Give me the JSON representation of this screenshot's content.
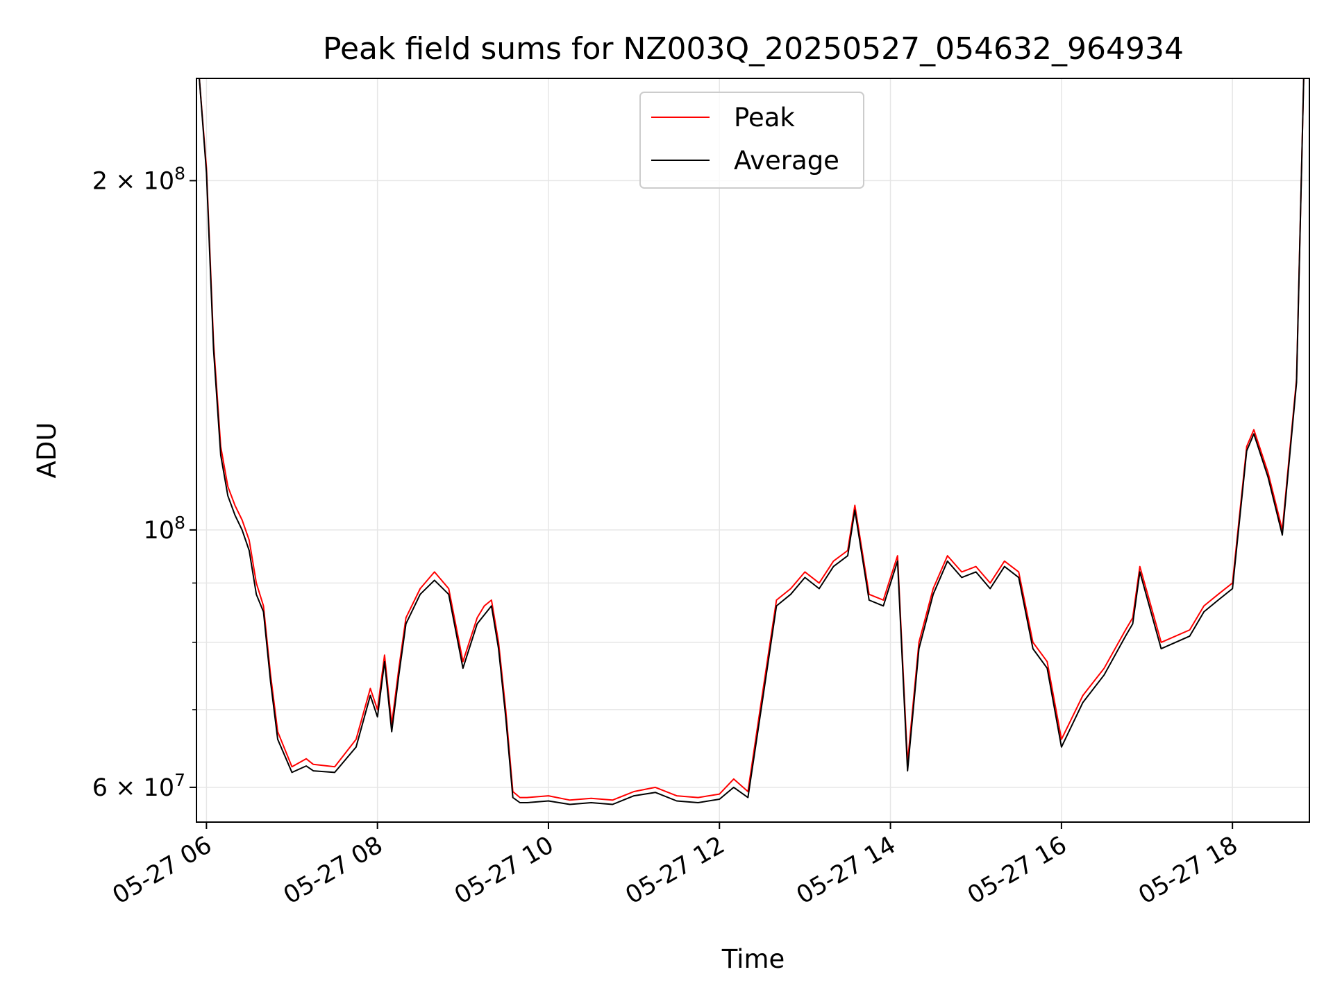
{
  "chart_data": {
    "type": "line",
    "title": "Peak field sums for NZ003Q_20250527_054632_964934",
    "xlabel": "Time",
    "ylabel": "ADU",
    "y_scale": "log",
    "grid": true,
    "legend_position": "top-center",
    "x_ticks": [
      "05-27 06",
      "05-27 08",
      "05-27 10",
      "05-27 12",
      "05-27 14",
      "05-27 16",
      "05-27 18"
    ],
    "y_ticks": [
      {
        "value": 200000000,
        "mantissa": "2",
        "exponent": "8"
      },
      {
        "value": 100000000,
        "mantissa": "",
        "exponent": "8"
      },
      {
        "value": 60000000,
        "mantissa": "6",
        "exponent": "7"
      }
    ],
    "xlim": [
      "2025-05-27 05:53",
      "2025-05-27 18:54"
    ],
    "ylim": [
      56000000,
      245000000
    ],
    "series_colors": {
      "Peak": "#ff0000",
      "Average": "#000000"
    },
    "series": [
      {
        "name": "Peak",
        "x": [
          "2025-05-27 05:55",
          "2025-05-27 06:00",
          "2025-05-27 06:05",
          "2025-05-27 06:10",
          "2025-05-27 06:15",
          "2025-05-27 06:20",
          "2025-05-27 06:25",
          "2025-05-27 06:30",
          "2025-05-27 06:35",
          "2025-05-27 06:40",
          "2025-05-27 06:45",
          "2025-05-27 06:50",
          "2025-05-27 07:00",
          "2025-05-27 07:10",
          "2025-05-27 07:15",
          "2025-05-27 07:30",
          "2025-05-27 07:45",
          "2025-05-27 07:55",
          "2025-05-27 08:00",
          "2025-05-27 08:05",
          "2025-05-27 08:10",
          "2025-05-27 08:15",
          "2025-05-27 08:20",
          "2025-05-27 08:30",
          "2025-05-27 08:40",
          "2025-05-27 08:50",
          "2025-05-27 09:00",
          "2025-05-27 09:10",
          "2025-05-27 09:15",
          "2025-05-27 09:20",
          "2025-05-27 09:25",
          "2025-05-27 09:30",
          "2025-05-27 09:35",
          "2025-05-27 09:40",
          "2025-05-27 09:45",
          "2025-05-27 10:00",
          "2025-05-27 10:15",
          "2025-05-27 10:30",
          "2025-05-27 10:45",
          "2025-05-27 11:00",
          "2025-05-27 11:15",
          "2025-05-27 11:30",
          "2025-05-27 11:45",
          "2025-05-27 12:00",
          "2025-05-27 12:10",
          "2025-05-27 12:20",
          "2025-05-27 12:30",
          "2025-05-27 12:40",
          "2025-05-27 12:50",
          "2025-05-27 13:00",
          "2025-05-27 13:10",
          "2025-05-27 13:20",
          "2025-05-27 13:30",
          "2025-05-27 13:35",
          "2025-05-27 13:45",
          "2025-05-27 13:55",
          "2025-05-27 14:05",
          "2025-05-27 14:12",
          "2025-05-27 14:20",
          "2025-05-27 14:30",
          "2025-05-27 14:40",
          "2025-05-27 14:50",
          "2025-05-27 15:00",
          "2025-05-27 15:10",
          "2025-05-27 15:20",
          "2025-05-27 15:30",
          "2025-05-27 15:40",
          "2025-05-27 15:50",
          "2025-05-27 16:00",
          "2025-05-27 16:15",
          "2025-05-27 16:30",
          "2025-05-27 16:45",
          "2025-05-27 16:50",
          "2025-05-27 16:55",
          "2025-05-27 17:10",
          "2025-05-27 17:30",
          "2025-05-27 17:40",
          "2025-05-27 17:50",
          "2025-05-27 18:00",
          "2025-05-27 18:10",
          "2025-05-27 18:15",
          "2025-05-27 18:25",
          "2025-05-27 18:35",
          "2025-05-27 18:45",
          "2025-05-27 18:50"
        ],
        "y": [
          245000000,
          205000000,
          145000000,
          118000000,
          109000000,
          105000000,
          102000000,
          98000000,
          90000000,
          86000000,
          75000000,
          67000000,
          62500000,
          63500000,
          62800000,
          62500000,
          66000000,
          73000000,
          70000000,
          78000000,
          68000000,
          76000000,
          84000000,
          89000000,
          92000000,
          89000000,
          77000000,
          84000000,
          86000000,
          87000000,
          80000000,
          70000000,
          59500000,
          58800000,
          58800000,
          59000000,
          58500000,
          58700000,
          58500000,
          59500000,
          60000000,
          59000000,
          58800000,
          59200000,
          61000000,
          59500000,
          72000000,
          87000000,
          89000000,
          92000000,
          90000000,
          94000000,
          96000000,
          105000000,
          88000000,
          87000000,
          95000000,
          63000000,
          80000000,
          89000000,
          95000000,
          92000000,
          93000000,
          90000000,
          94000000,
          92000000,
          80000000,
          77000000,
          66000000,
          72000000,
          76000000,
          82000000,
          84000000,
          93000000,
          80000000,
          82000000,
          86000000,
          88000000,
          90000000,
          118000000,
          122000000,
          112000000,
          100000000,
          135000000,
          245000000
        ]
      },
      {
        "name": "Average",
        "x": [
          "2025-05-27 05:55",
          "2025-05-27 06:00",
          "2025-05-27 06:05",
          "2025-05-27 06:10",
          "2025-05-27 06:15",
          "2025-05-27 06:20",
          "2025-05-27 06:25",
          "2025-05-27 06:30",
          "2025-05-27 06:35",
          "2025-05-27 06:40",
          "2025-05-27 06:45",
          "2025-05-27 06:50",
          "2025-05-27 07:00",
          "2025-05-27 07:10",
          "2025-05-27 07:15",
          "2025-05-27 07:30",
          "2025-05-27 07:45",
          "2025-05-27 07:55",
          "2025-05-27 08:00",
          "2025-05-27 08:05",
          "2025-05-27 08:10",
          "2025-05-27 08:15",
          "2025-05-27 08:20",
          "2025-05-27 08:30",
          "2025-05-27 08:40",
          "2025-05-27 08:50",
          "2025-05-27 09:00",
          "2025-05-27 09:10",
          "2025-05-27 09:15",
          "2025-05-27 09:20",
          "2025-05-27 09:25",
          "2025-05-27 09:30",
          "2025-05-27 09:35",
          "2025-05-27 09:40",
          "2025-05-27 09:45",
          "2025-05-27 10:00",
          "2025-05-27 10:15",
          "2025-05-27 10:30",
          "2025-05-27 10:45",
          "2025-05-27 11:00",
          "2025-05-27 11:15",
          "2025-05-27 11:30",
          "2025-05-27 11:45",
          "2025-05-27 12:00",
          "2025-05-27 12:10",
          "2025-05-27 12:20",
          "2025-05-27 12:30",
          "2025-05-27 12:40",
          "2025-05-27 12:50",
          "2025-05-27 13:00",
          "2025-05-27 13:10",
          "2025-05-27 13:20",
          "2025-05-27 13:30",
          "2025-05-27 13:35",
          "2025-05-27 13:45",
          "2025-05-27 13:55",
          "2025-05-27 14:05",
          "2025-05-27 14:12",
          "2025-05-27 14:20",
          "2025-05-27 14:30",
          "2025-05-27 14:40",
          "2025-05-27 14:50",
          "2025-05-27 15:00",
          "2025-05-27 15:10",
          "2025-05-27 15:20",
          "2025-05-27 15:30",
          "2025-05-27 15:40",
          "2025-05-27 15:50",
          "2025-05-27 16:00",
          "2025-05-27 16:15",
          "2025-05-27 16:30",
          "2025-05-27 16:45",
          "2025-05-27 16:50",
          "2025-05-27 16:55",
          "2025-05-27 17:10",
          "2025-05-27 17:30",
          "2025-05-27 17:40",
          "2025-05-27 17:50",
          "2025-05-27 18:00",
          "2025-05-27 18:10",
          "2025-05-27 18:15",
          "2025-05-27 18:25",
          "2025-05-27 18:35",
          "2025-05-27 18:45",
          "2025-05-27 18:50"
        ],
        "y": [
          245000000,
          203000000,
          143000000,
          116000000,
          107000000,
          103000000,
          100000000,
          96000000,
          88000000,
          85000000,
          74000000,
          66000000,
          61800000,
          62600000,
          62000000,
          61800000,
          65000000,
          72000000,
          69000000,
          77000000,
          67000000,
          75000000,
          83000000,
          88000000,
          90500000,
          88000000,
          76000000,
          83000000,
          84500000,
          86000000,
          79000000,
          69000000,
          58800000,
          58200000,
          58200000,
          58400000,
          58000000,
          58200000,
          58000000,
          59000000,
          59400000,
          58400000,
          58200000,
          58600000,
          60000000,
          58800000,
          71000000,
          86000000,
          88000000,
          91000000,
          89000000,
          93000000,
          95000000,
          104000000,
          87000000,
          86000000,
          94000000,
          62000000,
          79000000,
          88000000,
          94000000,
          91000000,
          92000000,
          89000000,
          93000000,
          91000000,
          79000000,
          76000000,
          65000000,
          71000000,
          75000000,
          81000000,
          83000000,
          92000000,
          79000000,
          81000000,
          85000000,
          87000000,
          89000000,
          117000000,
          121000000,
          111000000,
          99000000,
          134000000,
          245000000
        ]
      }
    ]
  }
}
